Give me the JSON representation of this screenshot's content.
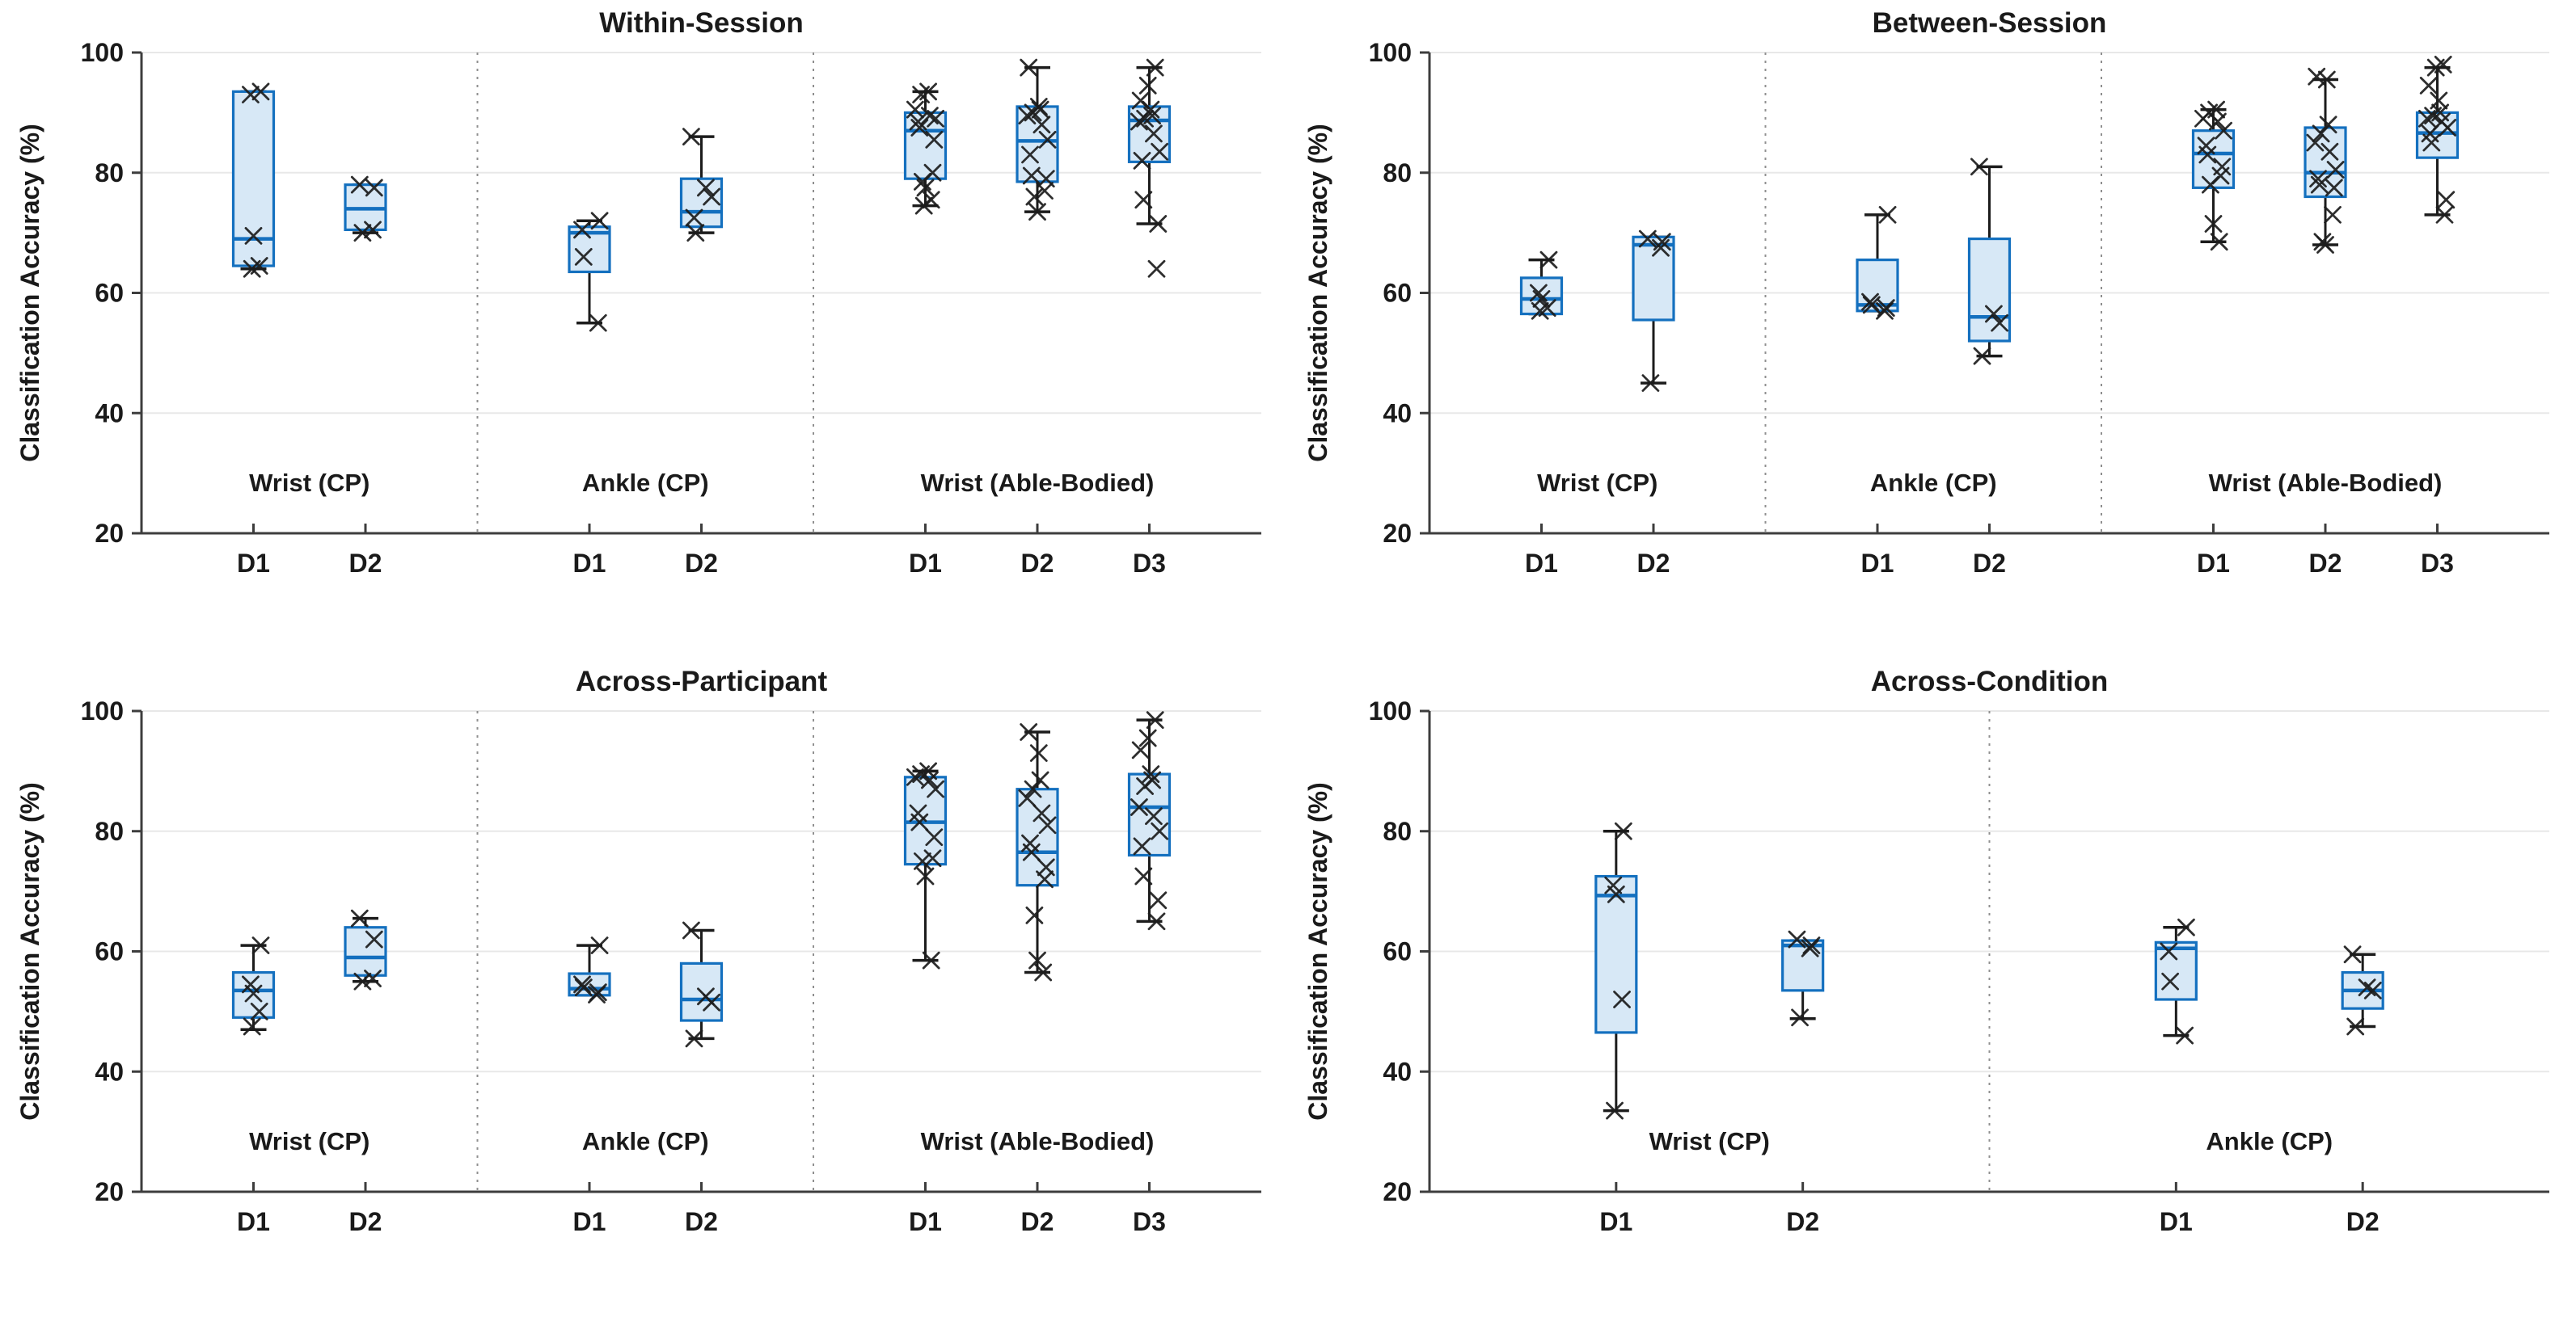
{
  "figure": {
    "type": "boxplot-grid",
    "ylabel": "Classification Accuracy (%)",
    "panel_titles": [
      "Within-Session",
      "Between-Session",
      "Across-Participant",
      "Across-Condition"
    ]
  },
  "style": {
    "box_edge": "#1470bf",
    "box_fill": "#d7e8f6",
    "median_color": "#1470bf",
    "whisker_color": "#1c1c1c",
    "marker_color": "#1c1c1c",
    "grid_color": "#e8e8e8",
    "axis_color": "#3d3d3d",
    "separator_color": "#8f8f8f",
    "text_color": "#1a1a1a",
    "background": "#ffffff"
  },
  "chart_data": [
    {
      "type": "box",
      "title": "Within-Session",
      "ylabel": "Classification Accuracy (%)",
      "ylim": [
        20,
        100
      ],
      "yticks": [
        20,
        40,
        60,
        80,
        100
      ],
      "grid": true,
      "groups": [
        {
          "label": "Wrist (CP)",
          "categories": [
            "D1",
            "D2"
          ]
        },
        {
          "label": "Ankle (CP)",
          "categories": [
            "D1",
            "D2"
          ]
        },
        {
          "label": "Wrist (Able-Bodied)",
          "categories": [
            "D1",
            "D2",
            "D3"
          ]
        }
      ],
      "boxes": [
        {
          "group": 0,
          "category": "D1",
          "whisker_low": 64,
          "q1": 64.5,
          "median": 69,
          "q3": 93.5,
          "whisker_high": 93.5,
          "points": [
            93.5,
            93,
            69.5,
            64.5,
            64
          ]
        },
        {
          "group": 0,
          "category": "D2",
          "whisker_low": 70,
          "q1": 70.5,
          "median": 74,
          "q3": 78,
          "whisker_high": 78,
          "points": [
            78,
            77.5,
            70.5,
            70
          ]
        },
        {
          "group": 1,
          "category": "D1",
          "whisker_low": 55,
          "q1": 63.5,
          "median": 70,
          "q3": 71,
          "whisker_high": 72,
          "points": [
            72,
            70.5,
            66,
            55
          ]
        },
        {
          "group": 1,
          "category": "D2",
          "whisker_low": 70,
          "q1": 71,
          "median": 73.5,
          "q3": 79,
          "whisker_high": 86,
          "points": [
            86,
            77.5,
            76,
            72.5,
            70
          ]
        },
        {
          "group": 2,
          "category": "D1",
          "whisker_low": 74.5,
          "q1": 79,
          "median": 87,
          "q3": 90,
          "whisker_high": 93.5,
          "points": [
            93.5,
            93,
            90.5,
            89.5,
            89,
            88.5,
            87.5,
            85.5,
            80,
            78.5,
            77.5,
            75.5,
            74.5
          ]
        },
        {
          "group": 2,
          "category": "D2",
          "whisker_low": 73.5,
          "q1": 78.5,
          "median": 85.3,
          "q3": 91,
          "whisker_high": 97.5,
          "points": [
            97.5,
            91,
            90.5,
            90,
            89.5,
            88,
            85.5,
            83,
            79.5,
            79,
            77,
            76,
            73.5
          ]
        },
        {
          "group": 2,
          "category": "D3",
          "whisker_low": 71.5,
          "q1": 81.8,
          "median": 88.7,
          "q3": 91,
          "whisker_high": 97.5,
          "points": [
            97.5,
            94.5,
            92,
            90.5,
            89.5,
            89,
            88.5,
            86.5,
            83.5,
            82,
            75.5,
            71.5,
            64
          ]
        }
      ]
    },
    {
      "type": "box",
      "title": "Between-Session",
      "ylabel": "Classification Accuracy (%)",
      "ylim": [
        20,
        100
      ],
      "yticks": [
        20,
        40,
        60,
        80,
        100
      ],
      "grid": true,
      "groups": [
        {
          "label": "Wrist (CP)",
          "categories": [
            "D1",
            "D2"
          ]
        },
        {
          "label": "Ankle (CP)",
          "categories": [
            "D1",
            "D2"
          ]
        },
        {
          "label": "Wrist (Able-Bodied)",
          "categories": [
            "D1",
            "D2",
            "D3"
          ]
        }
      ],
      "boxes": [
        {
          "group": 0,
          "category": "D1",
          "whisker_low": 56.5,
          "q1": 56.5,
          "median": 59,
          "q3": 62.5,
          "whisker_high": 65.5,
          "points": [
            65.5,
            60,
            59,
            57.5,
            57
          ]
        },
        {
          "group": 0,
          "category": "D2",
          "whisker_low": 45,
          "q1": 55.5,
          "median": 68,
          "q3": 69.3,
          "whisker_high": 69.3,
          "points": [
            69,
            68.5,
            67.5,
            45
          ]
        },
        {
          "group": 1,
          "category": "D1",
          "whisker_low": 57,
          "q1": 57,
          "median": 58,
          "q3": 65.5,
          "whisker_high": 73,
          "points": [
            73,
            58.5,
            58,
            57.5,
            57
          ]
        },
        {
          "group": 1,
          "category": "D2",
          "whisker_low": 49.5,
          "q1": 52,
          "median": 56,
          "q3": 69,
          "whisker_high": 81,
          "points": [
            81,
            56.5,
            55,
            49.5
          ]
        },
        {
          "group": 2,
          "category": "D1",
          "whisker_low": 68.5,
          "q1": 77.5,
          "median": 83.2,
          "q3": 87,
          "whisker_high": 90.5,
          "points": [
            90.5,
            90,
            89,
            88.5,
            87,
            84.5,
            83,
            81,
            79.5,
            78,
            71.5,
            68.5
          ]
        },
        {
          "group": 2,
          "category": "D2",
          "whisker_low": 68,
          "q1": 76,
          "median": 80,
          "q3": 87.5,
          "whisker_high": 95.5,
          "points": [
            96,
            95.5,
            88,
            86.5,
            85,
            83.5,
            80.5,
            79,
            78,
            77.5,
            73,
            68.5,
            68
          ]
        },
        {
          "group": 2,
          "category": "D3",
          "whisker_low": 73,
          "q1": 82.5,
          "median": 86.6,
          "q3": 90,
          "whisker_high": 97.5,
          "points": [
            98,
            97.5,
            94.5,
            92,
            90,
            89.5,
            89,
            88.5,
            87.5,
            86.5,
            85,
            75.5,
            73
          ]
        }
      ]
    },
    {
      "type": "box",
      "title": "Across-Participant",
      "ylabel": "Classification Accuracy (%)",
      "ylim": [
        20,
        100
      ],
      "yticks": [
        20,
        40,
        60,
        80,
        100
      ],
      "grid": true,
      "groups": [
        {
          "label": "Wrist (CP)",
          "categories": [
            "D1",
            "D2"
          ]
        },
        {
          "label": "Ankle (CP)",
          "categories": [
            "D1",
            "D2"
          ]
        },
        {
          "label": "Wrist (Able-Bodied)",
          "categories": [
            "D1",
            "D2",
            "D3"
          ]
        }
      ],
      "boxes": [
        {
          "group": 0,
          "category": "D1",
          "whisker_low": 47,
          "q1": 49,
          "median": 53.5,
          "q3": 56.5,
          "whisker_high": 61,
          "points": [
            61,
            54.5,
            53,
            50,
            47.5
          ]
        },
        {
          "group": 0,
          "category": "D2",
          "whisker_low": 55,
          "q1": 56,
          "median": 59,
          "q3": 64,
          "whisker_high": 65.5,
          "points": [
            65.5,
            62,
            55.5,
            55
          ]
        },
        {
          "group": 1,
          "category": "D1",
          "whisker_low": 52.7,
          "q1": 52.7,
          "median": 53.8,
          "q3": 56.3,
          "whisker_high": 61,
          "points": [
            61,
            54.5,
            54,
            53.2,
            52.8
          ]
        },
        {
          "group": 1,
          "category": "D2",
          "whisker_low": 45.5,
          "q1": 48.5,
          "median": 52,
          "q3": 58,
          "whisker_high": 63.5,
          "points": [
            63.5,
            52.5,
            51.5,
            45.5
          ]
        },
        {
          "group": 2,
          "category": "D1",
          "whisker_low": 58.5,
          "q1": 74.5,
          "median": 81.5,
          "q3": 89,
          "whisker_high": 90,
          "points": [
            90,
            89.5,
            89,
            88.5,
            87,
            83,
            81.5,
            79,
            75.5,
            75,
            72.5,
            58.5
          ]
        },
        {
          "group": 2,
          "category": "D2",
          "whisker_low": 56.5,
          "q1": 71,
          "median": 76.5,
          "q3": 87,
          "whisker_high": 96.5,
          "points": [
            96.5,
            93,
            88.5,
            87,
            85.5,
            83,
            81,
            78,
            76.5,
            74,
            72,
            66,
            58.5,
            56.5
          ]
        },
        {
          "group": 2,
          "category": "D3",
          "whisker_low": 65,
          "q1": 76,
          "median": 84,
          "q3": 89.5,
          "whisker_high": 98.5,
          "points": [
            98.5,
            95.5,
            93.5,
            89.5,
            88.5,
            87.5,
            84,
            82.5,
            80,
            77.5,
            72.5,
            68.5,
            65
          ]
        }
      ]
    },
    {
      "type": "box",
      "title": "Across-Condition",
      "ylabel": "Classification Accuracy (%)",
      "ylim": [
        20,
        100
      ],
      "yticks": [
        20,
        40,
        60,
        80,
        100
      ],
      "grid": true,
      "groups": [
        {
          "label": "Wrist (CP)",
          "categories": [
            "D1",
            "D2"
          ]
        },
        {
          "label": "Ankle (CP)",
          "categories": [
            "D1",
            "D2"
          ]
        }
      ],
      "boxes": [
        {
          "group": 0,
          "category": "D1",
          "whisker_low": 33.5,
          "q1": 46.5,
          "median": 69.3,
          "q3": 72.5,
          "whisker_high": 80,
          "points": [
            80,
            71,
            69.5,
            52,
            33.5
          ]
        },
        {
          "group": 0,
          "category": "D2",
          "whisker_low": 48.8,
          "q1": 53.5,
          "median": 61,
          "q3": 61.8,
          "whisker_high": 61.8,
          "points": [
            62,
            61,
            60.5,
            49
          ]
        },
        {
          "group": 1,
          "category": "D1",
          "whisker_low": 46,
          "q1": 52,
          "median": 60.5,
          "q3": 61.5,
          "whisker_high": 64,
          "points": [
            64,
            60,
            55,
            46
          ]
        },
        {
          "group": 1,
          "category": "D2",
          "whisker_low": 47.5,
          "q1": 50.5,
          "median": 53.5,
          "q3": 56.5,
          "whisker_high": 59.5,
          "points": [
            59.5,
            54,
            53.5,
            47.5
          ]
        }
      ]
    }
  ]
}
